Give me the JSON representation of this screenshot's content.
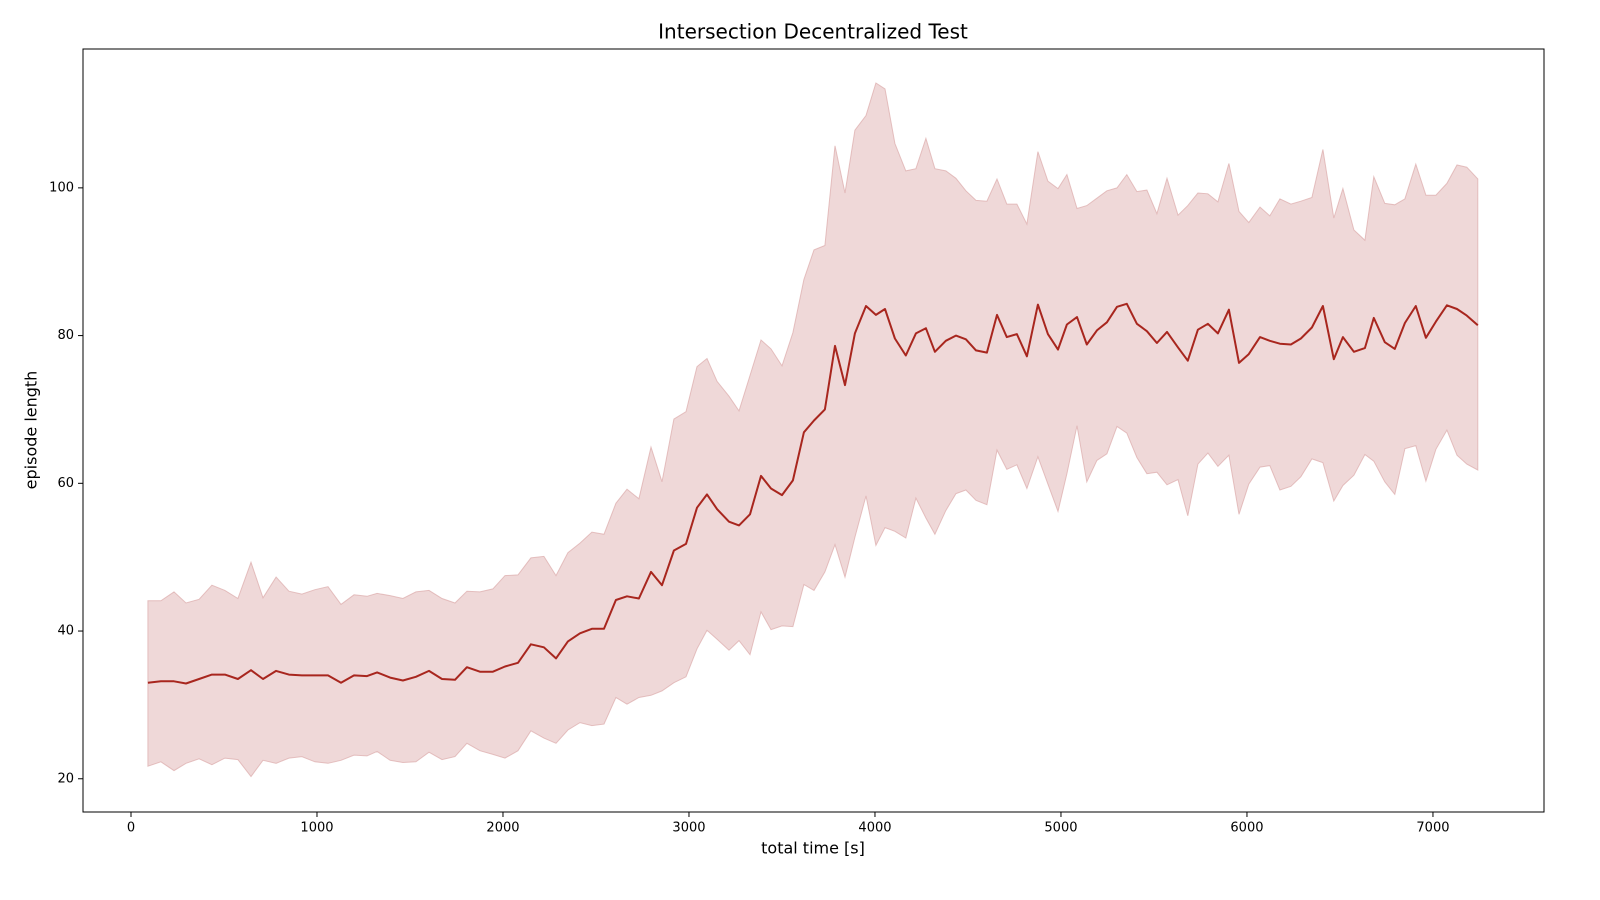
{
  "chart_data": {
    "type": "line",
    "title": "Intersection Decentralized Test",
    "xlabel": "total time [s]",
    "ylabel": "episode length",
    "color": "#a8261e",
    "band_color": "#dba9a9",
    "xlim": [
      -258,
      7597
    ],
    "ylim": [
      15.5,
      118.8
    ],
    "xticks": [
      0,
      1000,
      2000,
      3000,
      4000,
      5000,
      6000,
      7000
    ],
    "yticks": [
      20,
      40,
      60,
      80,
      100
    ],
    "x": [
      91,
      161,
      231,
      296,
      366,
      435,
      505,
      575,
      645,
      710,
      780,
      849,
      919,
      989,
      1059,
      1129,
      1199,
      1269,
      1323,
      1393,
      1462,
      1532,
      1602,
      1672,
      1742,
      1806,
      1876,
      1946,
      2011,
      2081,
      2150,
      2220,
      2285,
      2349,
      2414,
      2478,
      2543,
      2607,
      2667,
      2731,
      2796,
      2855,
      2919,
      2984,
      3043,
      3097,
      3151,
      3215,
      3269,
      3328,
      3387,
      3441,
      3500,
      3559,
      3618,
      3672,
      3731,
      3785,
      3839,
      3892,
      3952,
      4005,
      4054,
      4107,
      4166,
      4220,
      4274,
      4322,
      4381,
      4435,
      4489,
      4543,
      4602,
      4656,
      4709,
      4763,
      4817,
      4876,
      4930,
      4984,
      5032,
      5086,
      5139,
      5193,
      5247,
      5301,
      5354,
      5408,
      5462,
      5516,
      5570,
      5629,
      5682,
      5736,
      5790,
      5844,
      5903,
      5957,
      6010,
      6070,
      6123,
      6177,
      6236,
      6290,
      6349,
      6408,
      6467,
      6516,
      6575,
      6634,
      6682,
      6741,
      6795,
      6849,
      6908,
      6962,
      7016,
      7075,
      7129,
      7182,
      7241
    ],
    "values": [
      33.0,
      33.2,
      33.2,
      32.9,
      33.5,
      34.1,
      34.1,
      33.5,
      34.7,
      33.5,
      34.6,
      34.1,
      34.0,
      34.0,
      34.0,
      33.0,
      34.0,
      33.9,
      34.4,
      33.7,
      33.3,
      33.8,
      34.6,
      33.5,
      33.4,
      35.1,
      34.5,
      34.5,
      35.2,
      35.7,
      38.2,
      37.8,
      36.3,
      38.6,
      39.7,
      40.3,
      40.3,
      44.2,
      44.7,
      44.4,
      48.0,
      46.2,
      50.9,
      51.8,
      56.7,
      58.5,
      56.5,
      54.8,
      54.3,
      55.8,
      61.0,
      59.3,
      58.4,
      60.4,
      66.9,
      68.5,
      70.0,
      78.6,
      73.3,
      80.3,
      84.0,
      82.8,
      83.6,
      79.6,
      77.3,
      80.3,
      81.0,
      77.8,
      79.3,
      80.0,
      79.5,
      78.0,
      77.7,
      82.8,
      79.8,
      80.2,
      77.2,
      84.2,
      80.2,
      78.1,
      81.5,
      82.5,
      78.8,
      80.7,
      81.8,
      83.9,
      84.3,
      81.6,
      80.6,
      79.0,
      80.5,
      78.4,
      76.6,
      80.8,
      81.6,
      80.3,
      83.5,
      76.3,
      77.5,
      79.8,
      79.3,
      78.9,
      78.8,
      79.6,
      81.1,
      84.0,
      76.8,
      79.8,
      77.8,
      78.3,
      82.4,
      79.1,
      78.2,
      81.7,
      84.0,
      79.7,
      81.9,
      84.1,
      83.6,
      82.7,
      81.4
    ],
    "upper": [
      44.1,
      44.1,
      45.3,
      43.8,
      44.3,
      46.2,
      45.5,
      44.4,
      49.3,
      44.5,
      47.3,
      45.4,
      45.0,
      45.6,
      46.0,
      43.6,
      44.9,
      44.7,
      45.1,
      44.8,
      44.4,
      45.3,
      45.5,
      44.4,
      43.8,
      45.4,
      45.3,
      45.7,
      47.5,
      47.6,
      49.9,
      50.1,
      47.5,
      50.6,
      51.9,
      53.4,
      53.1,
      57.3,
      59.2,
      57.9,
      64.9,
      60.2,
      68.7,
      69.7,
      75.8,
      76.9,
      73.8,
      71.8,
      69.8,
      74.6,
      79.4,
      78.2,
      75.9,
      80.4,
      87.6,
      91.6,
      92.2,
      105.7,
      99.3,
      107.8,
      109.8,
      114.2,
      113.4,
      106.0,
      102.3,
      102.6,
      106.7,
      102.6,
      102.3,
      101.3,
      99.6,
      98.3,
      98.2,
      101.2,
      97.8,
      97.8,
      95.1,
      104.9,
      100.9,
      99.9,
      101.8,
      97.2,
      97.6,
      98.6,
      99.6,
      100.0,
      101.8,
      99.5,
      99.7,
      96.5,
      101.3,
      96.3,
      97.6,
      99.3,
      99.2,
      98.1,
      103.3,
      96.8,
      95.3,
      97.4,
      96.2,
      98.5,
      97.8,
      98.2,
      98.7,
      105.2,
      95.9,
      99.9,
      94.3,
      92.9,
      101.5,
      97.9,
      97.7,
      98.5,
      103.2,
      99.0,
      99.0,
      100.6,
      103.1,
      102.8,
      101.2
    ],
    "lower": [
      21.7,
      22.3,
      21.1,
      22.1,
      22.7,
      21.9,
      22.8,
      22.6,
      20.3,
      22.5,
      22.1,
      22.8,
      23.0,
      22.3,
      22.1,
      22.5,
      23.2,
      23.1,
      23.7,
      22.5,
      22.2,
      22.3,
      23.6,
      22.6,
      23.0,
      24.8,
      23.8,
      23.3,
      22.8,
      23.8,
      26.5,
      25.5,
      24.8,
      26.6,
      27.6,
      27.2,
      27.4,
      31.0,
      30.1,
      31.0,
      31.3,
      31.9,
      33.0,
      33.8,
      37.6,
      40.1,
      38.9,
      37.4,
      38.7,
      36.8,
      42.6,
      40.2,
      40.7,
      40.6,
      46.3,
      45.5,
      48.0,
      51.7,
      47.3,
      52.7,
      58.3,
      51.6,
      54.0,
      53.5,
      52.6,
      58.0,
      55.3,
      53.1,
      56.3,
      58.6,
      59.1,
      57.7,
      57.1,
      64.5,
      61.9,
      62.5,
      59.3,
      63.6,
      59.9,
      56.2,
      61.3,
      67.8,
      60.2,
      63.1,
      64.0,
      67.7,
      66.8,
      63.5,
      61.3,
      61.5,
      59.8,
      60.5,
      55.6,
      62.6,
      64.1,
      62.3,
      63.8,
      55.8,
      59.9,
      62.2,
      62.4,
      59.1,
      59.6,
      60.9,
      63.3,
      62.8,
      57.6,
      59.7,
      61.1,
      63.9,
      63.0,
      60.2,
      58.5,
      64.7,
      65.1,
      60.3,
      64.6,
      67.2,
      63.8,
      62.6,
      61.8
    ]
  }
}
